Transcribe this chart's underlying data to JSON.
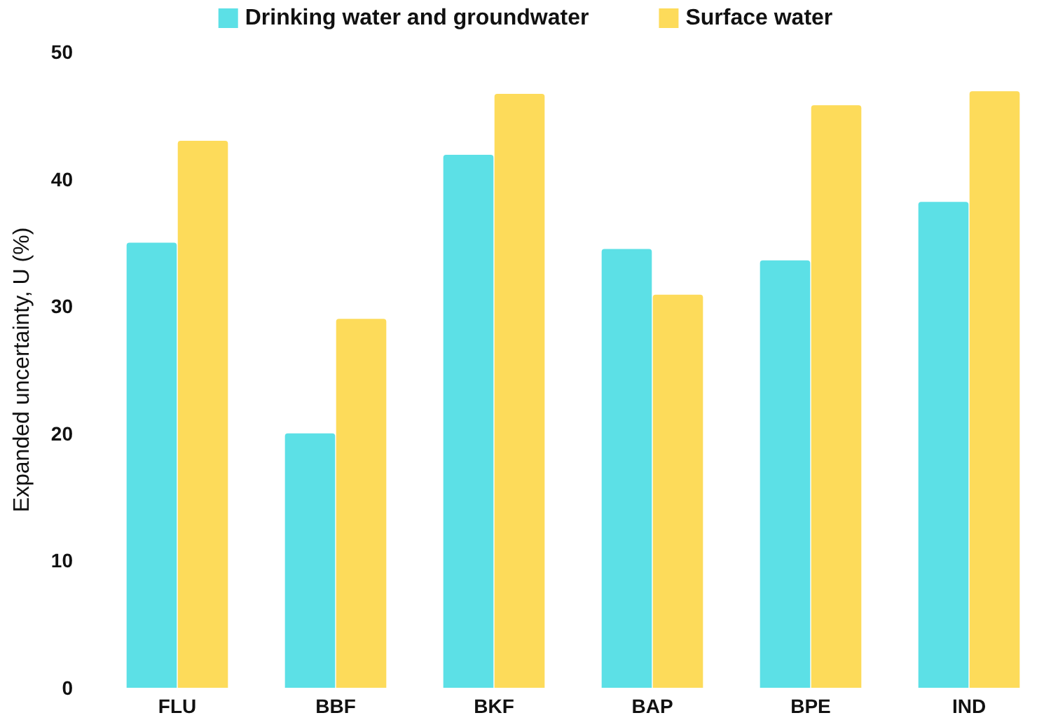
{
  "chart_data": {
    "type": "bar",
    "ylabel": "Expanded uncertainty, U (%)",
    "categories": [
      "FLU",
      "BBF",
      "BKF",
      "BAP",
      "BPE",
      "IND"
    ],
    "series": [
      {
        "name": "Drinking water and groundwater",
        "color": "#5ce0e6",
        "values": [
          35.0,
          20.0,
          41.9,
          34.5,
          33.6,
          38.2
        ]
      },
      {
        "name": "Surface water",
        "color": "#fddb5a",
        "values": [
          43.0,
          29.0,
          46.7,
          30.9,
          45.8,
          46.9
        ]
      }
    ],
    "ylim": [
      0,
      50
    ],
    "yticks": [
      0,
      10,
      20,
      30,
      40,
      50
    ],
    "grid": false,
    "legend": "top"
  }
}
